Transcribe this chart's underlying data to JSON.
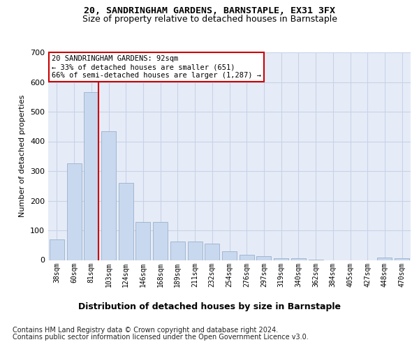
{
  "title1": "20, SANDRINGHAM GARDENS, BARNSTAPLE, EX31 3FX",
  "title2": "Size of property relative to detached houses in Barnstaple",
  "xlabel": "Distribution of detached houses by size in Barnstaple",
  "ylabel": "Number of detached properties",
  "categories": [
    "38sqm",
    "60sqm",
    "81sqm",
    "103sqm",
    "124sqm",
    "146sqm",
    "168sqm",
    "189sqm",
    "211sqm",
    "232sqm",
    "254sqm",
    "276sqm",
    "297sqm",
    "319sqm",
    "340sqm",
    "362sqm",
    "384sqm",
    "405sqm",
    "427sqm",
    "448sqm",
    "470sqm"
  ],
  "values": [
    70,
    325,
    565,
    435,
    260,
    128,
    128,
    62,
    62,
    55,
    30,
    18,
    12,
    5,
    5,
    2,
    0,
    0,
    0,
    8,
    5
  ],
  "bar_color": "#c8d8ee",
  "bar_edge_color": "#9ab0cc",
  "marker_bar_index": 2,
  "annotation_title": "20 SANDRINGHAM GARDENS: 92sqm",
  "annotation_line1": "← 33% of detached houses are smaller (651)",
  "annotation_line2": "66% of semi-detached houses are larger (1,287) →",
  "marker_line_color": "#cc0000",
  "annotation_box_edge": "#cc0000",
  "ylim_max": 700,
  "yticks": [
    0,
    100,
    200,
    300,
    400,
    500,
    600,
    700
  ],
  "grid_color": "#c8d2e8",
  "bg_color": "#e6ecf7",
  "footer1": "Contains HM Land Registry data © Crown copyright and database right 2024.",
  "footer2": "Contains public sector information licensed under the Open Government Licence v3.0."
}
